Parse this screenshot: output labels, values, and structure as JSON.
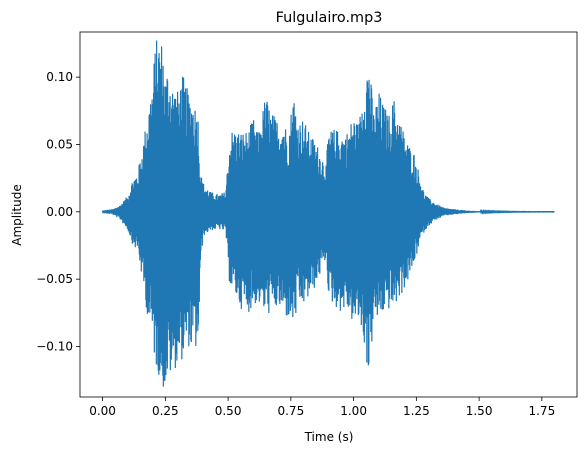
{
  "chart_data": {
    "type": "line",
    "title": "Fulgulairo.mp3",
    "xlabel": "Time (s)",
    "ylabel": "Amplitude",
    "xlim": [
      -0.09,
      1.89
    ],
    "ylim": [
      -0.1375,
      0.1335
    ],
    "xticks": [
      {
        "value": 0.0,
        "label": "0.00"
      },
      {
        "value": 0.25,
        "label": "0.25"
      },
      {
        "value": 0.5,
        "label": "0.50"
      },
      {
        "value": 0.75,
        "label": "0.75"
      },
      {
        "value": 1.0,
        "label": "1.00"
      },
      {
        "value": 1.25,
        "label": "1.25"
      },
      {
        "value": 1.5,
        "label": "1.50"
      },
      {
        "value": 1.75,
        "label": "1.75"
      }
    ],
    "yticks": [
      {
        "value": 0.1,
        "label": "0.10"
      },
      {
        "value": 0.05,
        "label": "0.05"
      },
      {
        "value": 0.0,
        "label": "0.00"
      },
      {
        "value": -0.05,
        "label": "−0.05"
      },
      {
        "value": -0.1,
        "label": "−0.10"
      }
    ],
    "grid": false,
    "color": "#1f77b4",
    "series": [
      {
        "envelope": {
          "t": [
            0.0,
            0.04,
            0.07,
            0.1,
            0.12,
            0.14,
            0.16,
            0.18,
            0.2,
            0.21,
            0.22,
            0.23,
            0.24,
            0.25,
            0.26,
            0.28,
            0.3,
            0.32,
            0.34,
            0.36,
            0.38,
            0.39,
            0.4,
            0.43,
            0.46,
            0.49,
            0.5,
            0.51,
            0.52,
            0.55,
            0.58,
            0.6,
            0.62,
            0.65,
            0.67,
            0.7,
            0.72,
            0.74,
            0.76,
            0.78,
            0.8,
            0.82,
            0.85,
            0.88,
            0.89,
            0.9,
            0.92,
            0.95,
            0.97,
            1.0,
            1.02,
            1.04,
            1.06,
            1.08,
            1.1,
            1.12,
            1.14,
            1.16,
            1.18,
            1.2,
            1.22,
            1.24,
            1.26,
            1.28,
            1.3,
            1.33,
            1.36,
            1.4,
            1.45,
            1.5,
            1.55,
            1.6,
            1.7,
            1.8
          ],
          "max": [
            0.001,
            0.002,
            0.005,
            0.012,
            0.025,
            0.03,
            0.05,
            0.075,
            0.1,
            0.126,
            0.131,
            0.13,
            0.126,
            0.1,
            0.11,
            0.095,
            0.09,
            0.102,
            0.09,
            0.085,
            0.075,
            0.03,
            0.022,
            0.015,
            0.013,
            0.015,
            0.04,
            0.06,
            0.062,
            0.06,
            0.06,
            0.07,
            0.058,
            0.088,
            0.075,
            0.068,
            0.07,
            0.058,
            0.09,
            0.068,
            0.07,
            0.06,
            0.052,
            0.04,
            0.035,
            0.06,
            0.062,
            0.06,
            0.058,
            0.072,
            0.065,
            0.095,
            0.118,
            0.075,
            0.09,
            0.08,
            0.072,
            0.085,
            0.072,
            0.06,
            0.05,
            0.045,
            0.03,
            0.015,
            0.01,
            0.006,
            0.003,
            0.002,
            0.001,
            0.0005,
            0.0003,
            0.0002,
            0.0001,
            0.0001
          ],
          "min": [
            -0.001,
            -0.002,
            -0.006,
            -0.014,
            -0.025,
            -0.03,
            -0.055,
            -0.08,
            -0.1,
            -0.115,
            -0.12,
            -0.125,
            -0.133,
            -0.13,
            -0.125,
            -0.12,
            -0.112,
            -0.11,
            -0.1,
            -0.105,
            -0.102,
            -0.04,
            -0.018,
            -0.014,
            -0.013,
            -0.015,
            -0.048,
            -0.058,
            -0.06,
            -0.072,
            -0.075,
            -0.07,
            -0.068,
            -0.078,
            -0.075,
            -0.072,
            -0.078,
            -0.08,
            -0.085,
            -0.072,
            -0.07,
            -0.065,
            -0.055,
            -0.04,
            -0.035,
            -0.065,
            -0.07,
            -0.075,
            -0.072,
            -0.085,
            -0.082,
            -0.098,
            -0.125,
            -0.08,
            -0.082,
            -0.075,
            -0.073,
            -0.072,
            -0.065,
            -0.058,
            -0.05,
            -0.04,
            -0.025,
            -0.015,
            -0.01,
            -0.006,
            -0.003,
            -0.002,
            -0.001,
            -0.0005,
            -0.0003,
            -0.0002,
            -0.0001,
            -0.0001
          ]
        }
      }
    ]
  }
}
